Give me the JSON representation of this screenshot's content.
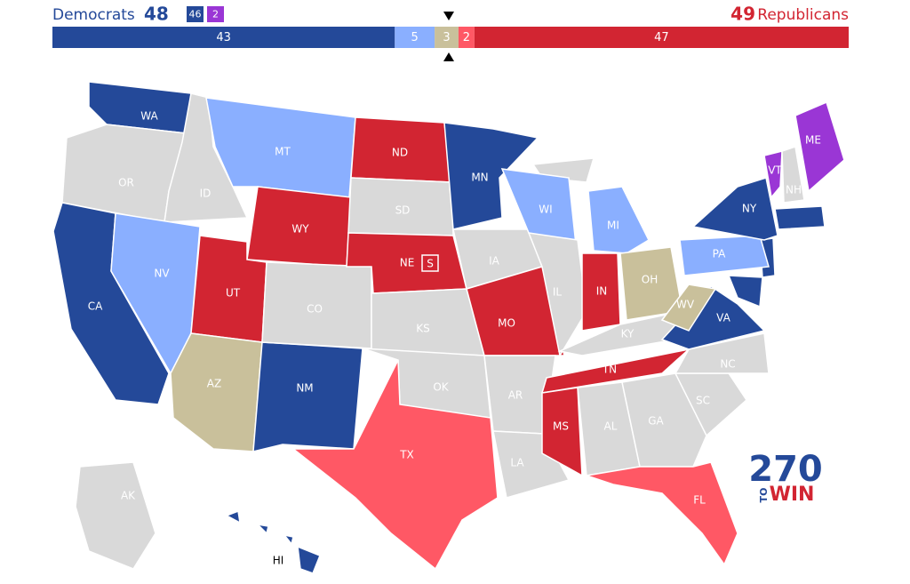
{
  "header": {
    "dem_label": "Democrats",
    "dem_total": "48",
    "dem_badges": [
      {
        "text": "46",
        "color": "#244999"
      },
      {
        "text": "2",
        "color": "#9a36d5"
      }
    ],
    "rep_total": "49",
    "rep_label": "Republicans"
  },
  "bar": [
    {
      "value": 43,
      "color": "#244999"
    },
    {
      "value": 5,
      "color": "#8aafff"
    },
    {
      "value": 3,
      "color": "#c9c09b"
    },
    {
      "value": 2,
      "color": "#ff5865"
    },
    {
      "value": 47,
      "color": "#d22532"
    }
  ],
  "states": [
    {
      "label": "WA",
      "color": "#244999"
    },
    {
      "label": "OR",
      "color": "#d9d9d9"
    },
    {
      "label": "CA",
      "color": "#244999"
    },
    {
      "label": "ID",
      "color": "#d9d9d9"
    },
    {
      "label": "NV",
      "color": "#8aafff"
    },
    {
      "label": "MT",
      "color": "#8aafff"
    },
    {
      "label": "WY",
      "color": "#d22532"
    },
    {
      "label": "UT",
      "color": "#d22532"
    },
    {
      "label": "AZ",
      "color": "#c9c09b"
    },
    {
      "label": "NM",
      "color": "#244999"
    },
    {
      "label": "CO",
      "color": "#d9d9d9"
    },
    {
      "label": "ND",
      "color": "#d22532"
    },
    {
      "label": "SD",
      "color": "#d9d9d9"
    },
    {
      "label": "NE",
      "color": "#d22532",
      "badge": "S"
    },
    {
      "label": "KS",
      "color": "#d9d9d9"
    },
    {
      "label": "OK",
      "color": "#d9d9d9"
    },
    {
      "label": "TX",
      "color": "#ff5865"
    },
    {
      "label": "MN",
      "color": "#244999"
    },
    {
      "label": "IA",
      "color": "#d9d9d9"
    },
    {
      "label": "MO",
      "color": "#d22532"
    },
    {
      "label": "AR",
      "color": "#d9d9d9"
    },
    {
      "label": "LA",
      "color": "#d9d9d9"
    },
    {
      "label": "WI",
      "color": "#8aafff"
    },
    {
      "label": "IL",
      "color": "#d9d9d9"
    },
    {
      "label": "MI",
      "color": "#8aafff"
    },
    {
      "label": "IN",
      "color": "#d22532"
    },
    {
      "label": "OH",
      "color": "#c9c09b"
    },
    {
      "label": "KY",
      "color": "#d9d9d9"
    },
    {
      "label": "TN",
      "color": "#d22532"
    },
    {
      "label": "MS",
      "color": "#d22532"
    },
    {
      "label": "AL",
      "color": "#d9d9d9"
    },
    {
      "label": "GA",
      "color": "#d9d9d9"
    },
    {
      "label": "FL",
      "color": "#ff5865"
    },
    {
      "label": "SC",
      "color": "#d9d9d9"
    },
    {
      "label": "NC",
      "color": "#d9d9d9"
    },
    {
      "label": "VA",
      "color": "#244999"
    },
    {
      "label": "WV",
      "color": "#c9c09b"
    },
    {
      "label": "PA",
      "color": "#8aafff"
    },
    {
      "label": "NY",
      "color": "#244999"
    },
    {
      "label": "VT",
      "color": "#9a36d5"
    },
    {
      "label": "NH",
      "color": "#d9d9d9"
    },
    {
      "label": "ME",
      "color": "#9a36d5"
    },
    {
      "label": "AK",
      "color": "#d9d9d9"
    },
    {
      "label": "HI",
      "color": "#244999",
      "label_color": "#000000"
    }
  ],
  "logo": {
    "number": "270",
    "to": "TO",
    "win": "WIN"
  }
}
